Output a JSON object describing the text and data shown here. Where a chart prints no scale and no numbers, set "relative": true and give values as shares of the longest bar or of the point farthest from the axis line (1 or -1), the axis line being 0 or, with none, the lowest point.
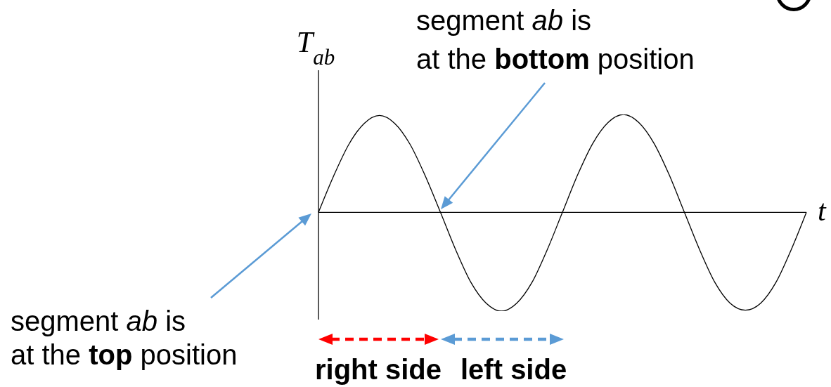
{
  "chart_data": {
    "type": "line",
    "relative": true,
    "xlabel": "t",
    "ylabel": "T$_{ab}$",
    "categories": [
      null,
      null,
      null,
      null,
      null,
      null,
      null,
      null,
      null,
      null,
      null,
      null,
      null,
      null,
      null,
      null,
      null,
      null,
      null,
      null,
      null,
      null,
      null,
      null,
      null,
      null,
      null,
      null,
      null,
      null,
      null,
      null,
      null
    ],
    "values": [
      0,
      0.37,
      0.69,
      0.9,
      0.98,
      0.9,
      0.69,
      0.37,
      0,
      -0.38,
      -0.71,
      -0.92,
      -1,
      -0.92,
      -0.71,
      -0.38,
      0,
      0.38,
      0.7,
      0.91,
      0.99,
      0.91,
      0.7,
      0.38,
      0,
      -0.38,
      -0.71,
      -0.92,
      -0.99,
      -0.92,
      -0.71,
      -0.38,
      0
    ],
    "color": "#000000",
    "annotations": [
      "segment ab is at the bottom position",
      "segment ab is at the top position",
      "right side",
      "left side"
    ]
  }
}
